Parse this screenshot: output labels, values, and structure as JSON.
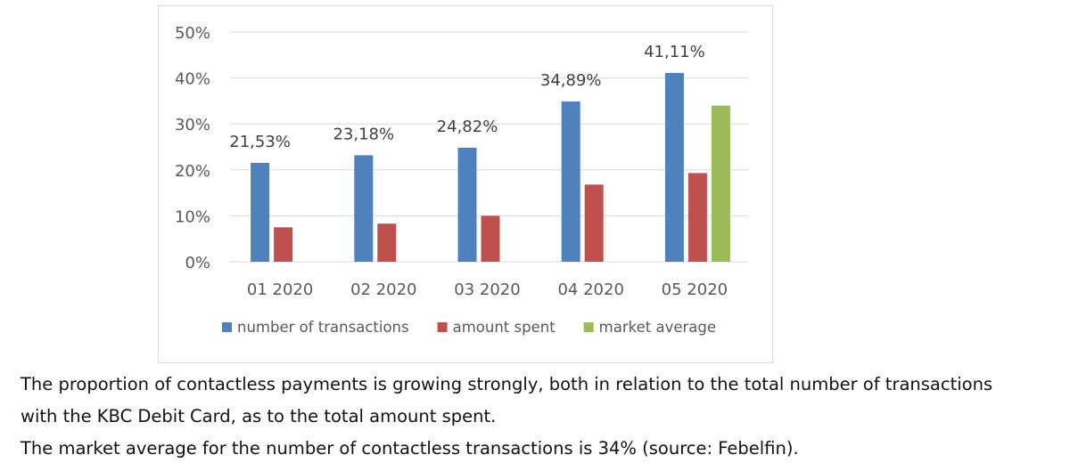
{
  "chart_data": {
    "type": "bar",
    "categories": [
      "01 2020",
      "02 2020",
      "03 2020",
      "04 2020",
      "05 2020"
    ],
    "series": [
      {
        "name": "number of transactions",
        "color": "#4f81bd",
        "values": [
          21.53,
          23.18,
          24.82,
          34.89,
          41.11
        ]
      },
      {
        "name": "amount spent",
        "color": "#c0504d",
        "values": [
          7.5,
          8.3,
          10.0,
          16.8,
          19.3
        ]
      },
      {
        "name": "market average",
        "color": "#9bbb59",
        "values": [
          null,
          null,
          null,
          null,
          34
        ]
      }
    ],
    "data_labels": [
      "21,53%",
      "23,18%",
      "24,82%",
      "34,89%",
      "41,11%"
    ],
    "ylim": [
      0,
      50
    ],
    "yticks": [
      "0%",
      "10%",
      "20%",
      "30%",
      "40%",
      "50%"
    ],
    "grid": true,
    "legend_position": "bottom"
  },
  "captions": {
    "line1": "The proportion of contactless payments is growing strongly, both in relation to the total number of transactions",
    "line2": "with the KBC Debit Card, as to the total amount spent.",
    "line3": "The market average for the number of contactless transactions is 34% (source: Febelfin)."
  }
}
